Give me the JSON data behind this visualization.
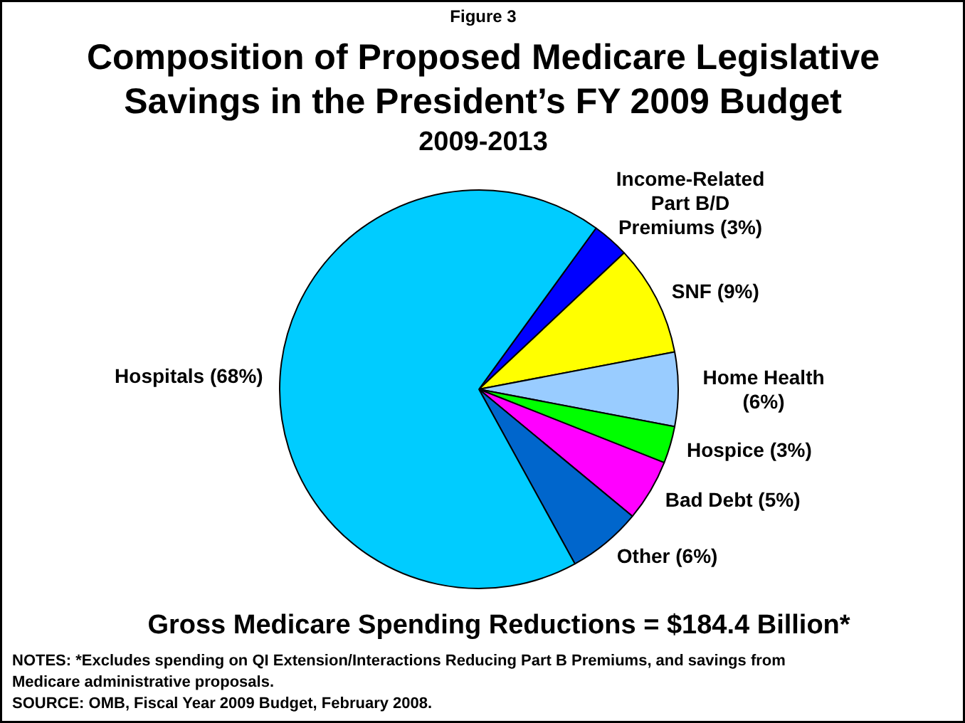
{
  "chart_data": {
    "type": "pie",
    "title": "Composition of Proposed Medicare Legislative Savings in the President’s FY 2009 Budget",
    "subtitle": "2009-2013",
    "categories": [
      "Income-Related Part B/D Premiums",
      "SNF",
      "Home Health",
      "Hospice",
      "Bad Debt",
      "Other",
      "Hospitals"
    ],
    "values": [
      3,
      9,
      6,
      3,
      5,
      6,
      68
    ],
    "colors": [
      "#0000ff",
      "#ffff00",
      "#99ccff",
      "#00ff00",
      "#ff00ff",
      "#0066cc",
      "#00ccff"
    ],
    "value_labels": [
      "(3%)",
      "(9%)",
      "(6%)",
      "(3%)",
      "(5%)",
      "(6%)",
      "(68%)"
    ],
    "annotations": [
      "Figure 3",
      "Gross Medicare Spending Reductions = $184.4 Billion*",
      "NOTES: *Excludes spending on QI Extension/Interactions Reducing Part B Premiums, and savings from Medicare administrative proposals.",
      "SOURCE: OMB, Fiscal Year 2009 Budget, February 2008."
    ]
  }
}
